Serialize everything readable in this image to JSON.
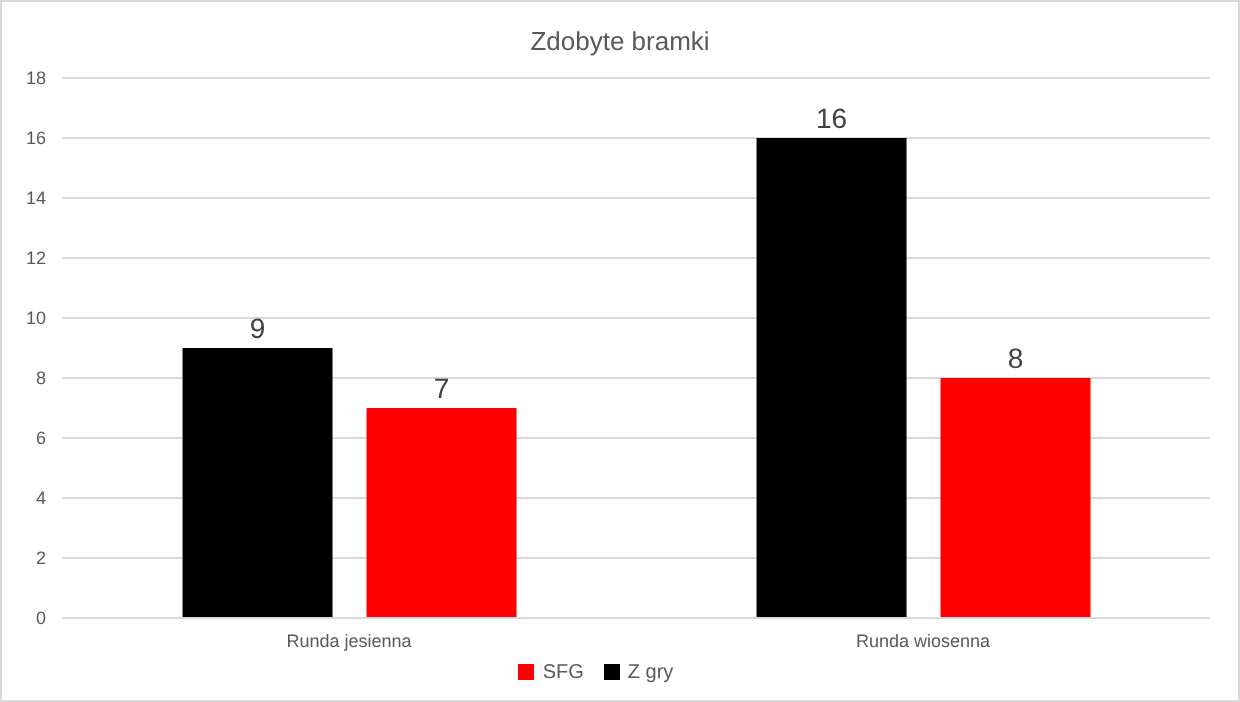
{
  "chart_data": {
    "type": "bar",
    "title": "Zdobyte bramki",
    "categories": [
      "Runda jesienna",
      "Runda wiosenna"
    ],
    "series": [
      {
        "name": "Z gry",
        "color": "#000000",
        "values": [
          9,
          16
        ]
      },
      {
        "name": "SFG",
        "color": "#ff0000",
        "values": [
          7,
          8
        ]
      }
    ],
    "ylim": [
      0,
      18
    ],
    "yticks": [
      0,
      2,
      4,
      6,
      8,
      10,
      12,
      14,
      16,
      18
    ],
    "grid": "y",
    "legend": "bottom",
    "data_labels": true
  }
}
